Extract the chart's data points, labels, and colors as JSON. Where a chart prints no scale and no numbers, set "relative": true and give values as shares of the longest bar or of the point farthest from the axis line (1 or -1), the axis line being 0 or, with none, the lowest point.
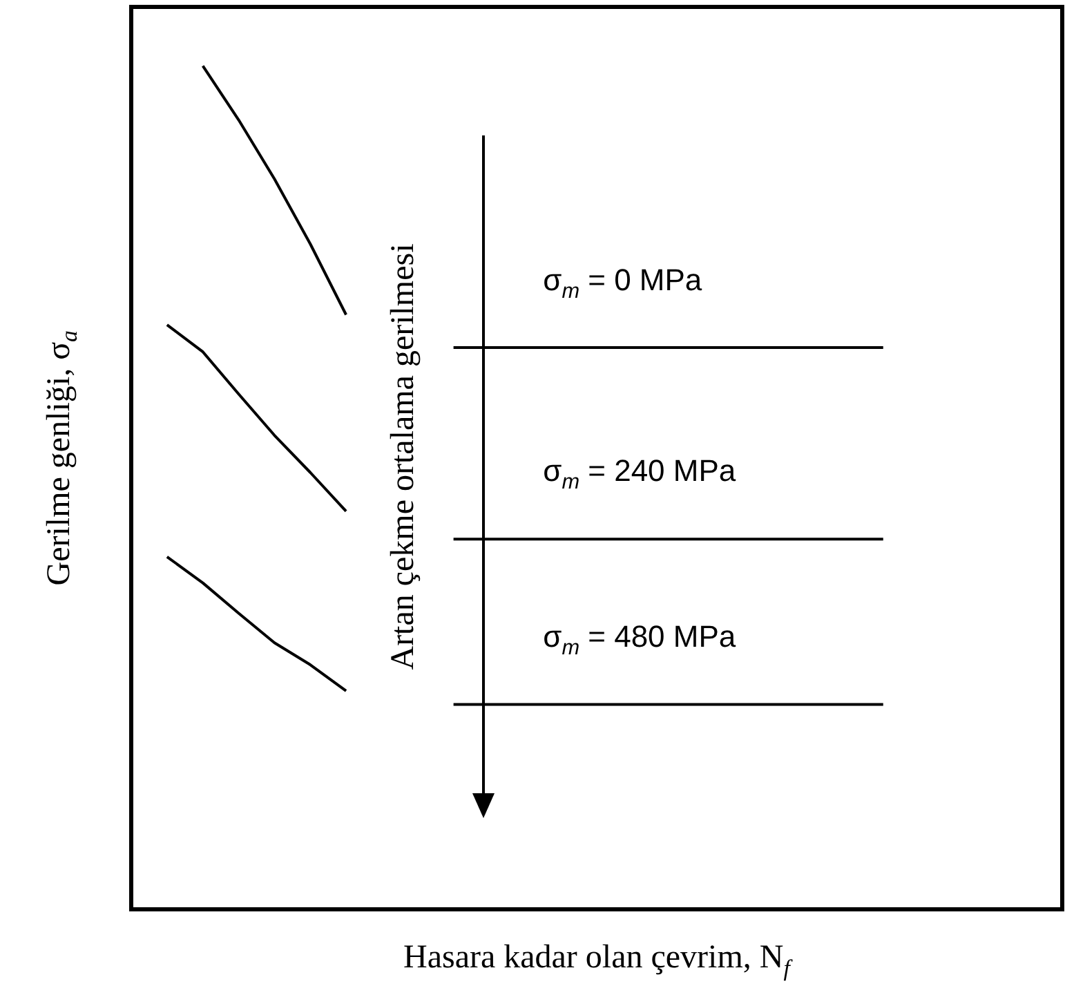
{
  "chart_data": {
    "type": "line",
    "relative": true,
    "tick_labels": false,
    "marker": "none",
    "xlabel": "Hasara kadar olan çevrim, N$_{f}$",
    "ylabel": "Gerilme genliği, σ$_{a}$",
    "annotations": [
      "Artan çekme ortalama gerilmesi"
    ],
    "categories": [
      null,
      null,
      null,
      null,
      null,
      null,
      null,
      null,
      null,
      null,
      null,
      null,
      null,
      null,
      null,
      null,
      null,
      null,
      null,
      null,
      null,
      null,
      null,
      null,
      null,
      null,
      null
    ],
    "series": [
      {
        "color": "#000000",
        "values": [
          null,
          null,
          1,
          0.936,
          0.866,
          0.789,
          0.705,
          null,
          null,
          null,
          null,
          null,
          null,
          null,
          null,
          null,
          null,
          null,
          null,
          null,
          null,
          null,
          null,
          null,
          null,
          null,
          null
        ]
      },
      {
        "color": "#000000",
        "values": [
          null,
          0.693,
          0.661,
          0.611,
          0.562,
          0.518,
          0.472,
          null,
          null,
          null,
          null,
          null,
          null,
          null,
          null,
          null,
          null,
          null,
          null,
          null,
          null,
          null,
          null,
          null,
          null,
          null,
          null
        ]
      },
      {
        "color": "#000000",
        "values": [
          null,
          0.418,
          0.387,
          0.351,
          0.316,
          0.29,
          0.259,
          null,
          null,
          null,
          null,
          null,
          null,
          null,
          null,
          null,
          null,
          null,
          null,
          null,
          null,
          null,
          null,
          null,
          null,
          null,
          null
        ]
      },
      {
        "name": "σ$_{m}$ = 0 MPa",
        "color": "#000000",
        "values": [
          null,
          null,
          null,
          null,
          null,
          null,
          null,
          null,
          null,
          0.666,
          0.666,
          0.666,
          0.666,
          0.666,
          0.666,
          0.666,
          0.666,
          0.666,
          0.666,
          0.666,
          0.666,
          0.666,
          null,
          null,
          null,
          null,
          null
        ]
      },
      {
        "name": "σ$_{m}$ = 240 MPa",
        "color": "#000000",
        "values": [
          null,
          null,
          null,
          null,
          null,
          null,
          null,
          null,
          null,
          0.439,
          0.439,
          0.439,
          0.439,
          0.439,
          0.439,
          0.439,
          0.439,
          0.439,
          0.439,
          0.439,
          0.439,
          0.439,
          null,
          null,
          null,
          null,
          null
        ]
      },
      {
        "name": "σ$_{m}$ = 480 MPa",
        "color": "#000000",
        "values": [
          null,
          null,
          null,
          null,
          null,
          null,
          null,
          null,
          null,
          0.243,
          0.243,
          0.243,
          0.243,
          0.243,
          0.243,
          0.243,
          0.243,
          0.243,
          0.243,
          0.243,
          0.243,
          0.243,
          null,
          null,
          null,
          null,
          null
        ]
      }
    ]
  }
}
